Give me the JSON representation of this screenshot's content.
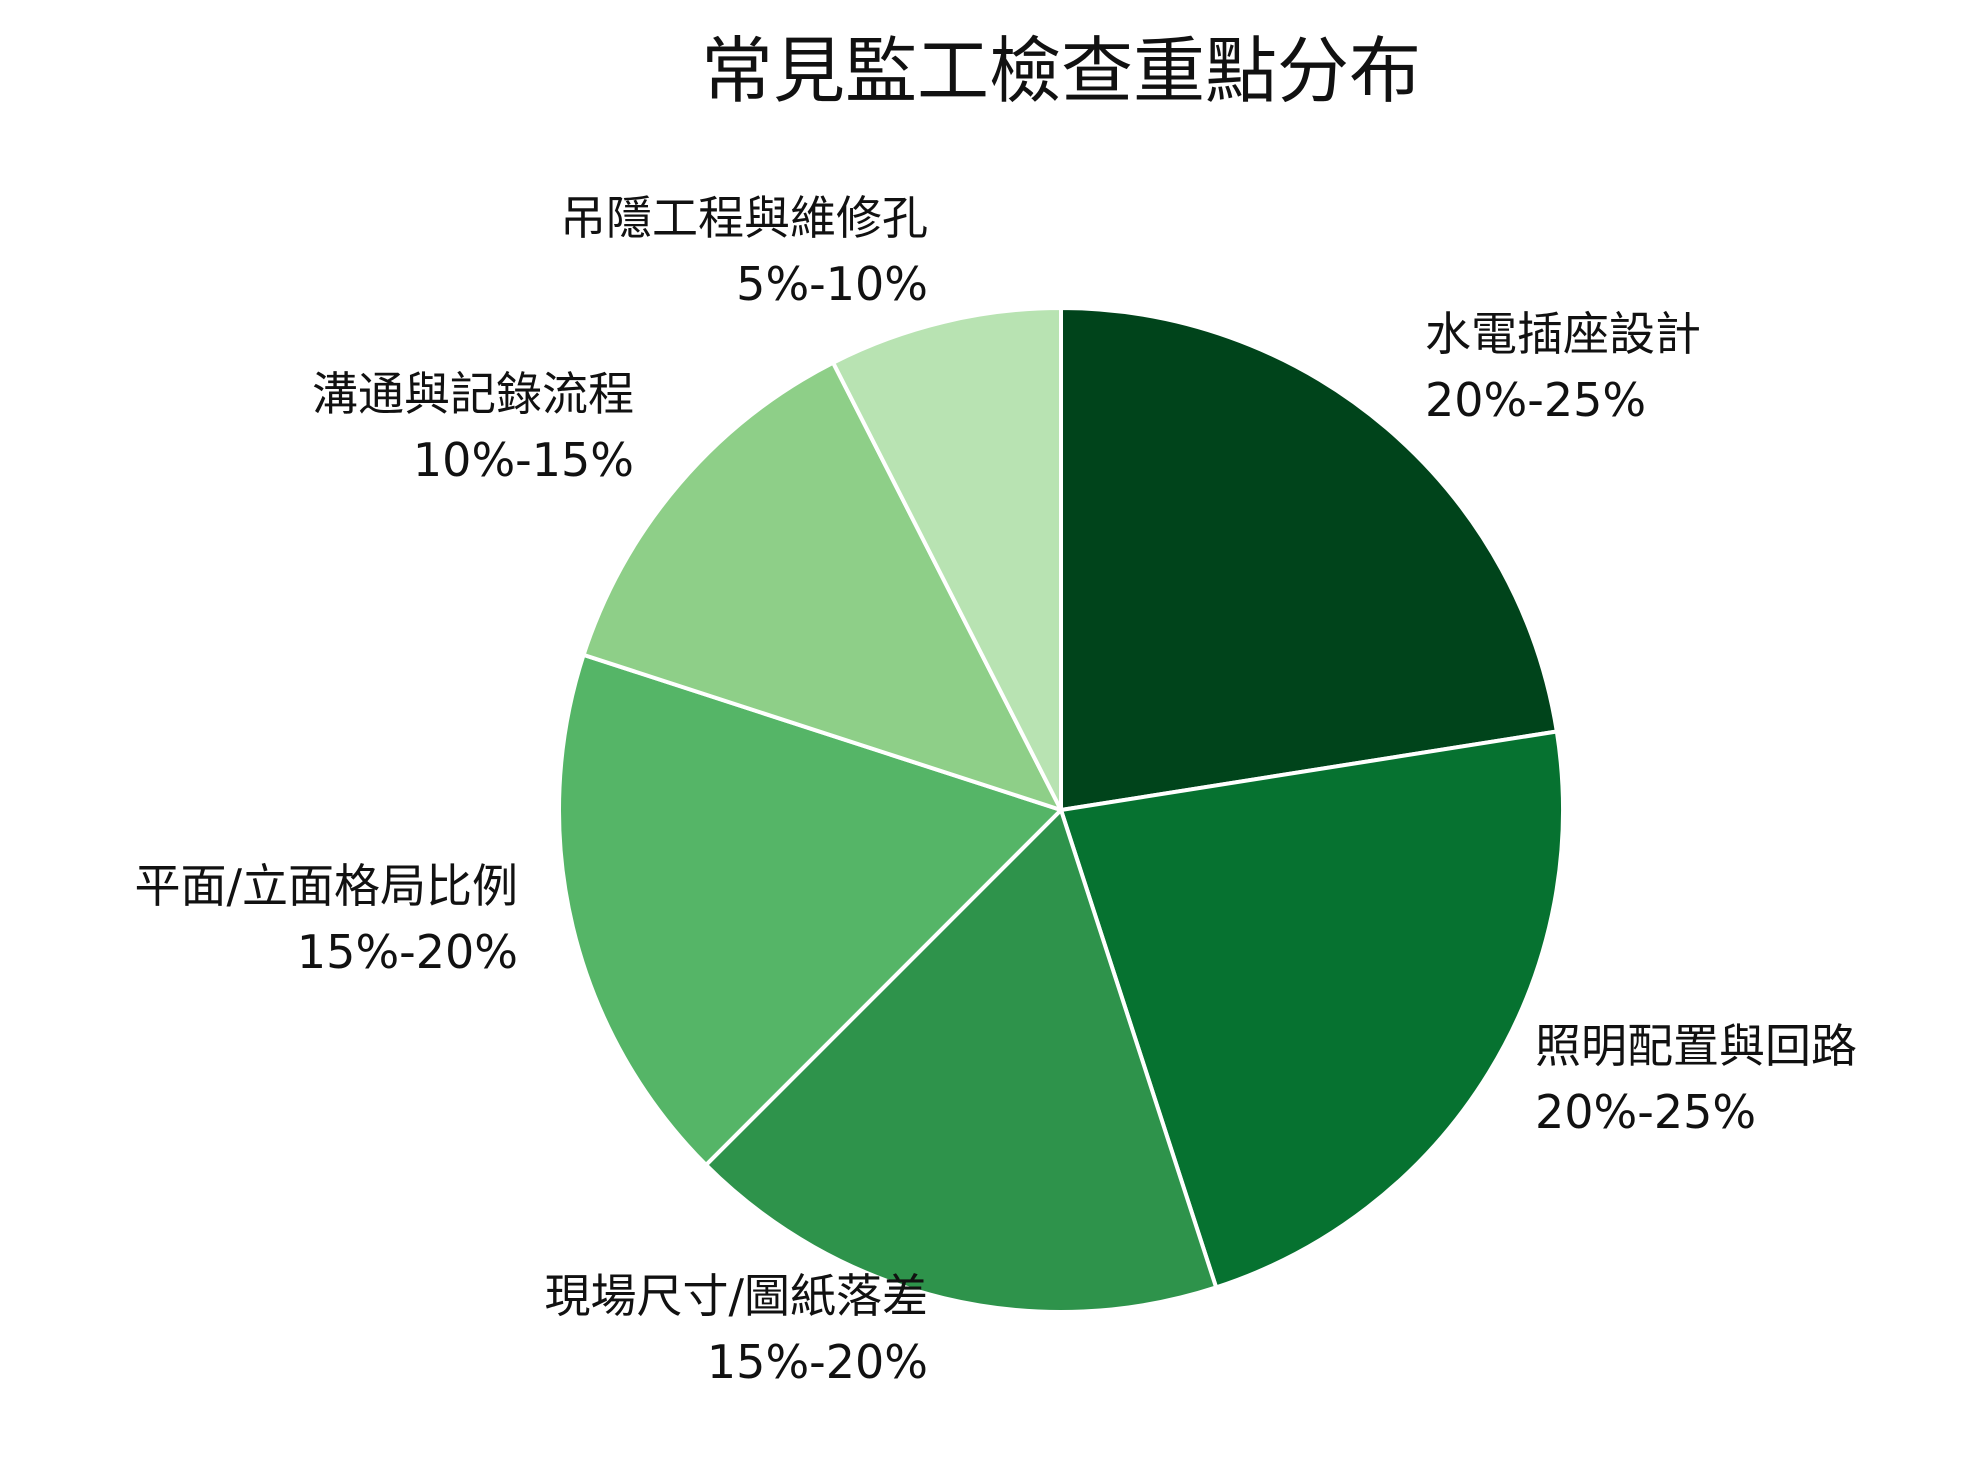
{
  "chart_data": {
    "type": "pie",
    "title": "常見監工檢查重點分布",
    "start_angle_deg": 0,
    "direction": "clockwise",
    "slices": [
      {
        "label": "水電插座設計",
        "range": "20%-25%",
        "value": 22.5,
        "color": "#00441b"
      },
      {
        "label": "照明配置與回路",
        "range": "20%-25%",
        "value": 22.5,
        "color": "#067230"
      },
      {
        "label": "現場尺寸/圖紙落差",
        "range": "15%-20%",
        "value": 17.5,
        "color": "#2e934b"
      },
      {
        "label": "平面/立面格局比例",
        "range": "15%-20%",
        "value": 17.5,
        "color": "#55b567"
      },
      {
        "label": "溝通與記錄流程",
        "range": "10%-15%",
        "value": 12.5,
        "color": "#8ecf88"
      },
      {
        "label": "吊隱工程與維修孔",
        "range": "5%-10%",
        "value": 7.5,
        "color": "#b8e3b2"
      }
    ]
  }
}
